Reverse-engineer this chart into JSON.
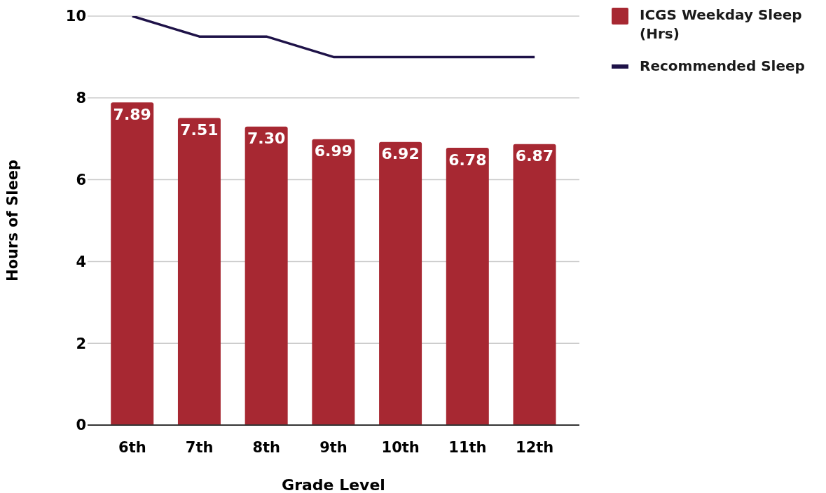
{
  "chart_data": {
    "type": "bar",
    "xlabel": "Grade Level",
    "ylabel": "Hours of Sleep",
    "categories": [
      "6th",
      "7th",
      "8th",
      "9th",
      "10th",
      "11th",
      "12th"
    ],
    "series": [
      {
        "name": "ICGS Weekday Sleep (Hrs)",
        "color": "#a72832",
        "values": [
          7.89,
          7.51,
          7.3,
          6.99,
          6.92,
          6.78,
          6.87
        ],
        "value_labels": [
          "7.89",
          "7.51",
          "7.30",
          "6.99",
          "6.92",
          "6.78",
          "6.87"
        ]
      },
      {
        "name": "Recommended Sleep",
        "type": "line",
        "color": "#1e1248",
        "values": [
          10,
          9.5,
          9.5,
          9,
          9,
          9,
          9
        ]
      }
    ],
    "ylim": [
      0,
      10
    ],
    "yticks": [
      0,
      2,
      4,
      6,
      8,
      10
    ],
    "grid": "y",
    "legend": "top right"
  }
}
